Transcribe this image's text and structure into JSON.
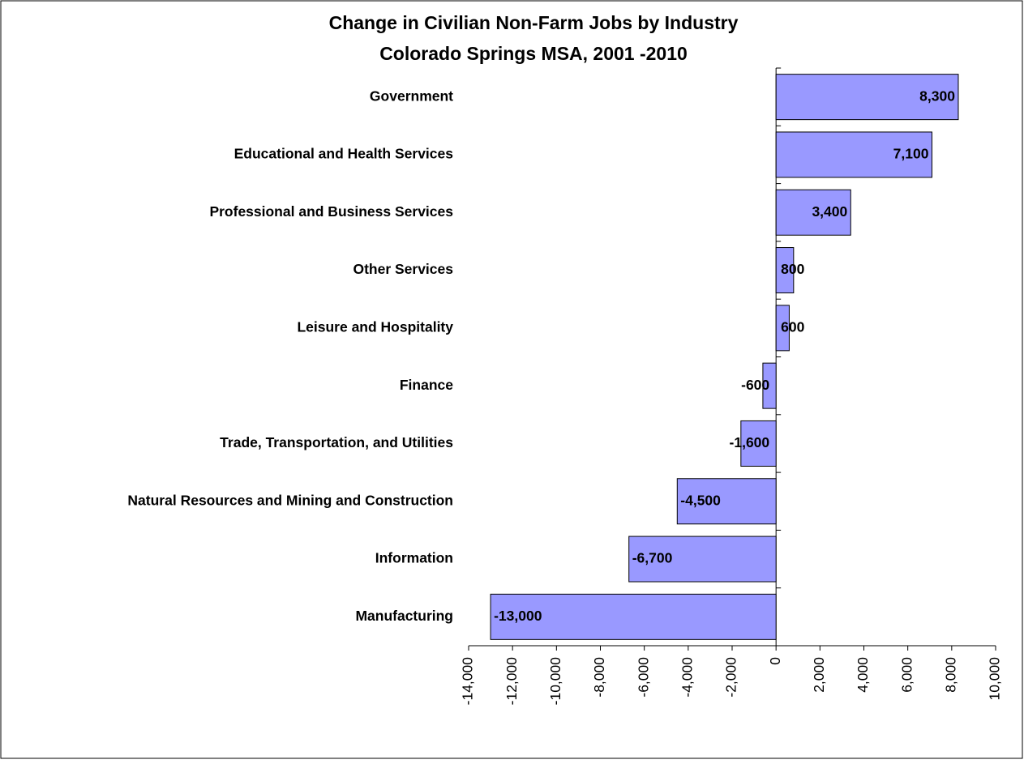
{
  "chart_data": {
    "type": "barh",
    "title": "Change in Civilian Non-Farm Jobs by Industry",
    "subtitle": "Colorado Springs MSA, 2001 -2010",
    "categories": [
      "Government",
      "Educational and Health Services",
      "Professional and Business Services",
      "Other Services",
      "Leisure and Hospitality",
      "Finance",
      "Trade, Transportation, and Utilities",
      "Natural Resources and Mining and Construction",
      "Information",
      "Manufacturing"
    ],
    "values": [
      8300,
      7100,
      3400,
      800,
      600,
      -600,
      -1600,
      -4500,
      -6700,
      -13000
    ],
    "value_labels": [
      "8,300",
      "7,100",
      "3,400",
      "800",
      "600",
      "-600",
      "-1,600",
      "-4,500",
      "-6,700",
      "-13,000"
    ],
    "color": "#9999ff",
    "xlim": [
      -14000,
      10000
    ],
    "xticks": [
      {
        "value": -14000,
        "label": "-14,000"
      },
      {
        "value": -12000,
        "label": "-12,000"
      },
      {
        "value": -10000,
        "label": "-10,000"
      },
      {
        "value": -8000,
        "label": "-8,000"
      },
      {
        "value": -6000,
        "label": "-6,000"
      },
      {
        "value": -4000,
        "label": "-4,000"
      },
      {
        "value": -2000,
        "label": "-2,000"
      },
      0,
      {
        "value": 2000,
        "label": "2,000"
      },
      {
        "value": 4000,
        "label": "4,000"
      },
      {
        "value": 6000,
        "label": "6,000"
      },
      {
        "value": 8000,
        "label": "8,000"
      },
      {
        "value": 10000,
        "label": "10,000"
      }
    ],
    "grid": false
  }
}
